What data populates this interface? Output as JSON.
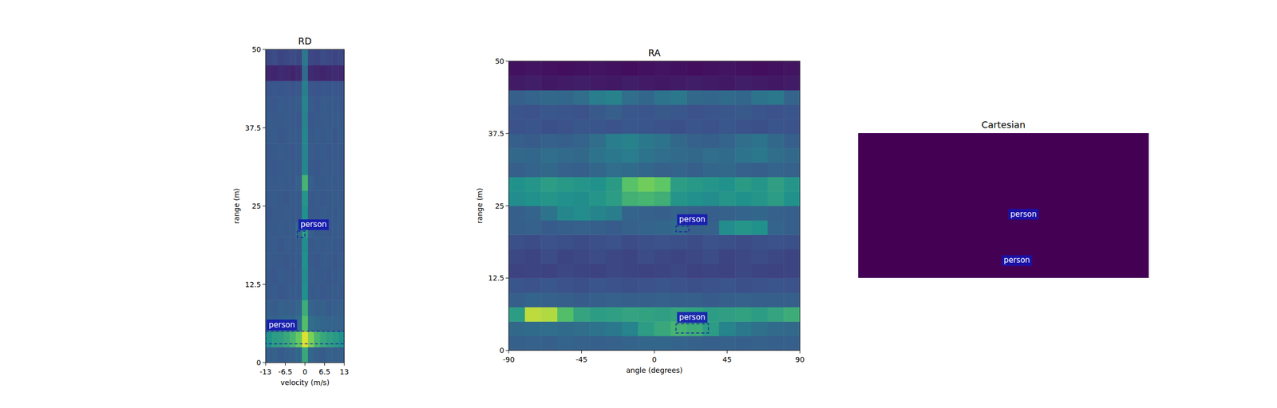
{
  "chart_data": [
    {
      "type": "heatmap",
      "title": "RD",
      "xlabel": "velocity (m/s)",
      "ylabel": "range (m)",
      "xlim": [
        -13,
        13
      ],
      "ylim": [
        0,
        50
      ],
      "xticks": [
        -13,
        -6.5,
        0,
        6.5,
        13
      ],
      "yticks": [
        0,
        12.5,
        25,
        37.5,
        50
      ],
      "zlim": [
        0,
        1
      ],
      "cells": [
        [
          0.3,
          0.31,
          0.29,
          0.3,
          0.31,
          0.33,
          0.6,
          0.33,
          0.3,
          0.29,
          0.31,
          0.3,
          0.3
        ],
        [
          0.5,
          0.55,
          0.56,
          0.6,
          0.66,
          0.76,
          0.95,
          0.8,
          0.66,
          0.6,
          0.56,
          0.54,
          0.5
        ],
        [
          0.32,
          0.31,
          0.33,
          0.34,
          0.33,
          0.36,
          0.7,
          0.36,
          0.34,
          0.33,
          0.32,
          0.32,
          0.31
        ],
        [
          0.3,
          0.29,
          0.31,
          0.3,
          0.3,
          0.32,
          0.62,
          0.32,
          0.3,
          0.31,
          0.29,
          0.3,
          0.3
        ],
        [
          0.28,
          0.29,
          0.27,
          0.28,
          0.29,
          0.28,
          0.5,
          0.28,
          0.29,
          0.27,
          0.28,
          0.29,
          0.28
        ],
        [
          0.28,
          0.27,
          0.29,
          0.28,
          0.27,
          0.29,
          0.48,
          0.29,
          0.28,
          0.28,
          0.27,
          0.28,
          0.29
        ],
        [
          0.29,
          0.28,
          0.28,
          0.27,
          0.28,
          0.28,
          0.5,
          0.28,
          0.27,
          0.29,
          0.28,
          0.27,
          0.28
        ],
        [
          0.28,
          0.29,
          0.27,
          0.29,
          0.28,
          0.29,
          0.49,
          0.28,
          0.29,
          0.28,
          0.29,
          0.28,
          0.27
        ],
        [
          0.28,
          0.28,
          0.29,
          0.28,
          0.29,
          0.34,
          0.55,
          0.3,
          0.28,
          0.28,
          0.27,
          0.29,
          0.28
        ],
        [
          0.27,
          0.28,
          0.28,
          0.29,
          0.28,
          0.28,
          0.5,
          0.28,
          0.28,
          0.29,
          0.28,
          0.28,
          0.29
        ],
        [
          0.28,
          0.29,
          0.28,
          0.27,
          0.29,
          0.28,
          0.52,
          0.28,
          0.29,
          0.27,
          0.28,
          0.29,
          0.28
        ],
        [
          0.29,
          0.28,
          0.29,
          0.28,
          0.28,
          0.3,
          0.65,
          0.3,
          0.28,
          0.28,
          0.29,
          0.28,
          0.28
        ],
        [
          0.28,
          0.27,
          0.28,
          0.29,
          0.28,
          0.28,
          0.46,
          0.28,
          0.27,
          0.28,
          0.28,
          0.29,
          0.27
        ],
        [
          0.27,
          0.28,
          0.29,
          0.28,
          0.27,
          0.29,
          0.45,
          0.29,
          0.28,
          0.29,
          0.27,
          0.28,
          0.28
        ],
        [
          0.28,
          0.29,
          0.27,
          0.28,
          0.29,
          0.28,
          0.46,
          0.28,
          0.29,
          0.28,
          0.29,
          0.27,
          0.29
        ],
        [
          0.29,
          0.28,
          0.28,
          0.29,
          0.28,
          0.27,
          0.44,
          0.27,
          0.28,
          0.28,
          0.28,
          0.29,
          0.28
        ],
        [
          0.28,
          0.27,
          0.29,
          0.28,
          0.28,
          0.29,
          0.45,
          0.29,
          0.27,
          0.29,
          0.28,
          0.28,
          0.27
        ],
        [
          0.26,
          0.27,
          0.26,
          0.27,
          0.26,
          0.27,
          0.43,
          0.27,
          0.26,
          0.27,
          0.26,
          0.27,
          0.26
        ],
        [
          0.12,
          0.11,
          0.13,
          0.12,
          0.11,
          0.13,
          0.35,
          0.13,
          0.12,
          0.11,
          0.12,
          0.13,
          0.12
        ],
        [
          0.22,
          0.23,
          0.21,
          0.22,
          0.23,
          0.22,
          0.4,
          0.22,
          0.21,
          0.23,
          0.22,
          0.21,
          0.22
        ]
      ],
      "annotations": [
        {
          "label": "person",
          "xlim": [
            -2.5,
            0
          ],
          "ylim": [
            20,
            21
          ]
        },
        {
          "label": "person",
          "xlim": [
            -13,
            13
          ],
          "ylim": [
            3,
            5
          ]
        }
      ]
    },
    {
      "type": "heatmap",
      "title": "RA",
      "xlabel": "angle (degrees)",
      "ylabel": "range (m)",
      "xlim": [
        -90,
        90
      ],
      "ylim": [
        0,
        50
      ],
      "xticks": [
        -90,
        -45,
        0,
        45,
        90
      ],
      "yticks": [
        0,
        12.5,
        25,
        37.5,
        50
      ],
      "zlim": [
        0,
        1
      ],
      "cells": [
        [
          0.3,
          0.31,
          0.3,
          0.32,
          0.31,
          0.3,
          0.31,
          0.32,
          0.33,
          0.33,
          0.32,
          0.31,
          0.3,
          0.31,
          0.3,
          0.31,
          0.3,
          0.3
        ],
        [
          0.34,
          0.35,
          0.36,
          0.35,
          0.36,
          0.38,
          0.4,
          0.45,
          0.55,
          0.6,
          0.65,
          0.62,
          0.55,
          0.45,
          0.4,
          0.37,
          0.35,
          0.34
        ],
        [
          0.55,
          0.9,
          0.88,
          0.7,
          0.58,
          0.55,
          0.56,
          0.58,
          0.57,
          0.56,
          0.58,
          0.57,
          0.55,
          0.56,
          0.57,
          0.55,
          0.58,
          0.62
        ],
        [
          0.3,
          0.32,
          0.31,
          0.3,
          0.29,
          0.3,
          0.31,
          0.3,
          0.3,
          0.31,
          0.3,
          0.3,
          0.29,
          0.3,
          0.31,
          0.3,
          0.3,
          0.3
        ],
        [
          0.26,
          0.25,
          0.27,
          0.25,
          0.24,
          0.26,
          0.25,
          0.24,
          0.25,
          0.26,
          0.25,
          0.24,
          0.25,
          0.26,
          0.24,
          0.25,
          0.26,
          0.25
        ],
        [
          0.2,
          0.21,
          0.2,
          0.22,
          0.21,
          0.2,
          0.22,
          0.21,
          0.2,
          0.21,
          0.22,
          0.2,
          0.21,
          0.2,
          0.22,
          0.21,
          0.2,
          0.21
        ],
        [
          0.22,
          0.21,
          0.23,
          0.21,
          0.22,
          0.23,
          0.22,
          0.21,
          0.23,
          0.22,
          0.21,
          0.22,
          0.23,
          0.21,
          0.22,
          0.23,
          0.22,
          0.21
        ],
        [
          0.24,
          0.23,
          0.25,
          0.24,
          0.23,
          0.24,
          0.25,
          0.23,
          0.24,
          0.25,
          0.24,
          0.23,
          0.25,
          0.24,
          0.23,
          0.24,
          0.25,
          0.24
        ],
        [
          0.3,
          0.31,
          0.29,
          0.3,
          0.31,
          0.3,
          0.29,
          0.31,
          0.32,
          0.33,
          0.35,
          0.3,
          0.31,
          0.48,
          0.52,
          0.5,
          0.32,
          0.3
        ],
        [
          0.3,
          0.32,
          0.38,
          0.46,
          0.48,
          0.45,
          0.42,
          0.32,
          0.31,
          0.3,
          0.32,
          0.31,
          0.3,
          0.31,
          0.32,
          0.33,
          0.31,
          0.3
        ],
        [
          0.48,
          0.5,
          0.52,
          0.5,
          0.49,
          0.52,
          0.55,
          0.64,
          0.66,
          0.63,
          0.52,
          0.5,
          0.48,
          0.52,
          0.5,
          0.52,
          0.55,
          0.5
        ],
        [
          0.5,
          0.52,
          0.55,
          0.53,
          0.52,
          0.5,
          0.54,
          0.72,
          0.78,
          0.74,
          0.55,
          0.53,
          0.52,
          0.5,
          0.54,
          0.52,
          0.56,
          0.52
        ],
        [
          0.3,
          0.32,
          0.34,
          0.31,
          0.3,
          0.33,
          0.36,
          0.35,
          0.33,
          0.31,
          0.32,
          0.3,
          0.33,
          0.34,
          0.31,
          0.3,
          0.32,
          0.31
        ],
        [
          0.34,
          0.33,
          0.36,
          0.35,
          0.34,
          0.38,
          0.4,
          0.42,
          0.38,
          0.36,
          0.35,
          0.34,
          0.36,
          0.35,
          0.38,
          0.4,
          0.36,
          0.34
        ],
        [
          0.3,
          0.29,
          0.31,
          0.3,
          0.32,
          0.36,
          0.42,
          0.44,
          0.4,
          0.38,
          0.34,
          0.31,
          0.3,
          0.32,
          0.36,
          0.38,
          0.34,
          0.3
        ],
        [
          0.25,
          0.26,
          0.24,
          0.25,
          0.27,
          0.26,
          0.25,
          0.27,
          0.26,
          0.25,
          0.24,
          0.26,
          0.25,
          0.27,
          0.25,
          0.24,
          0.26,
          0.25
        ],
        [
          0.26,
          0.25,
          0.27,
          0.26,
          0.25,
          0.28,
          0.3,
          0.27,
          0.26,
          0.28,
          0.27,
          0.25,
          0.26,
          0.27,
          0.28,
          0.26,
          0.25,
          0.26
        ],
        [
          0.3,
          0.32,
          0.34,
          0.33,
          0.36,
          0.42,
          0.44,
          0.36,
          0.33,
          0.38,
          0.4,
          0.34,
          0.33,
          0.35,
          0.33,
          0.38,
          0.4,
          0.32
        ],
        [
          0.08,
          0.09,
          0.07,
          0.08,
          0.09,
          0.08,
          0.07,
          0.09,
          0.08,
          0.07,
          0.08,
          0.09,
          0.08,
          0.07,
          0.09,
          0.08,
          0.07,
          0.08
        ],
        [
          0.05,
          0.06,
          0.05,
          0.04,
          0.05,
          0.06,
          0.05,
          0.04,
          0.05,
          0.06,
          0.05,
          0.04,
          0.05,
          0.06,
          0.05,
          0.04,
          0.05,
          0.06
        ]
      ],
      "annotations": [
        {
          "label": "person",
          "xlim": [
            13.4,
            21.4
          ],
          "ylim": [
            20.5,
            21.5
          ]
        },
        {
          "label": "person",
          "xlim": [
            13.4,
            33.5
          ],
          "ylim": [
            3,
            4.6
          ]
        }
      ]
    },
    {
      "type": "scatter",
      "title": "Cartesian",
      "xlim": [
        -50,
        50
      ],
      "ylim": [
        0,
        50
      ],
      "tick_labels": false,
      "color": "#440154",
      "annotations": [
        {
          "label": "person",
          "x": 6.9,
          "y": 21.9
        },
        {
          "label": "person",
          "x": 4.6,
          "y": 5.9
        }
      ]
    }
  ]
}
